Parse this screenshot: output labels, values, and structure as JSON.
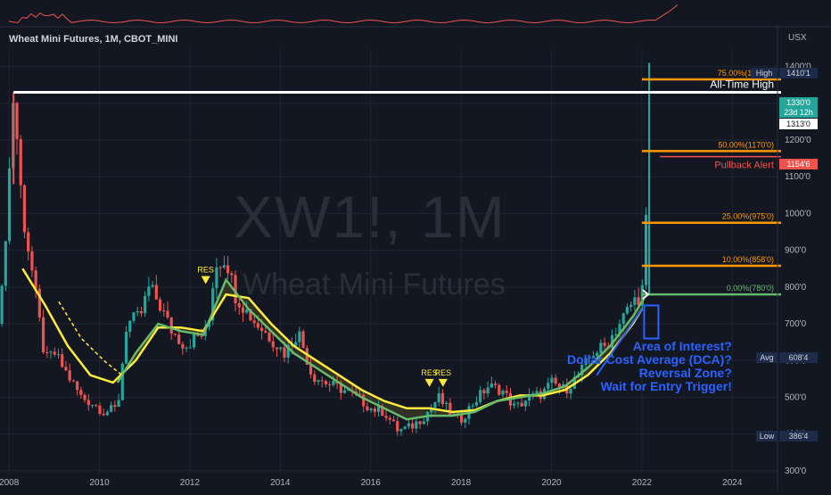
{
  "header": {
    "title": "Wheat Mini Futures, 1M, CBOT_MINI",
    "currency": "USX"
  },
  "watermark": {
    "symbol": "XW1!, 1M",
    "name": "Wheat Mini Futures"
  },
  "price_badges": {
    "high_label": "High",
    "high_value": "1410'1",
    "current_value": "1330'0",
    "countdown": "23d 12h",
    "level_value": "1313'0",
    "alert_value": "1154'6",
    "avg_label": "Avg",
    "avg_value": "608'4",
    "low_label": "Low",
    "low_value": "386'4"
  },
  "annotations": {
    "ath": "All-Time High",
    "pullback": "Pullback Alert",
    "res1": "RES",
    "res2": "RES",
    "res3": "RES",
    "zone_lines": [
      "Area of Interest?",
      "Dollar Cost Average (DCA)?",
      "Reversal Zone?",
      "Wait for Entry Trigger!"
    ]
  },
  "colors": {
    "background": "#131722",
    "up_candle": "#26a69a",
    "down_candle": "#ef5350",
    "fib": "#ff9800",
    "ma_yellow": "#ffeb3b",
    "ma_green": "#66bb6a",
    "zone_blue": "#2962ff",
    "oscillator": "#ef5350"
  },
  "chart_data": {
    "type": "candlestick",
    "x_range": [
      2007.8,
      2025.0
    ],
    "ylim": [
      290,
      1450
    ],
    "x_ticks": [
      {
        "x": 2008,
        "label": "2008"
      },
      {
        "x": 2010,
        "label": "2010"
      },
      {
        "x": 2012,
        "label": "2012"
      },
      {
        "x": 2014,
        "label": "2014"
      },
      {
        "x": 2016,
        "label": "2016"
      },
      {
        "x": 2018,
        "label": "2018"
      },
      {
        "x": 2020,
        "label": "2020"
      },
      {
        "x": 2022,
        "label": "2022"
      },
      {
        "x": 2024,
        "label": "2024"
      }
    ],
    "y_ticks": [
      {
        "y": 300,
        "label": "300'0"
      },
      {
        "y": 400,
        "label": "400'0"
      },
      {
        "y": 500,
        "label": "500'0"
      },
      {
        "y": 600,
        "label": "600'0"
      },
      {
        "y": 700,
        "label": "700'0"
      },
      {
        "y": 800,
        "label": "800'0"
      },
      {
        "y": 900,
        "label": "900'0"
      },
      {
        "y": 1000,
        "label": "1000'0"
      },
      {
        "y": 1100,
        "label": "1100'0"
      },
      {
        "y": 1200,
        "label": "1200'0"
      },
      {
        "y": 1300,
        "label": "1300'0"
      },
      {
        "y": 1400,
        "label": "1400'0"
      }
    ],
    "price_path": [
      [
        2007.8,
        700
      ],
      [
        2008.0,
        1100
      ],
      [
        2008.1,
        1330
      ],
      [
        2008.3,
        1000
      ],
      [
        2008.5,
        850
      ],
      [
        2008.8,
        600
      ],
      [
        2009.0,
        620
      ],
      [
        2009.3,
        560
      ],
      [
        2009.6,
        500
      ],
      [
        2009.9,
        480
      ],
      [
        2010.1,
        460
      ],
      [
        2010.4,
        470
      ],
      [
        2010.6,
        700
      ],
      [
        2010.9,
        720
      ],
      [
        2011.1,
        800
      ],
      [
        2011.3,
        760
      ],
      [
        2011.6,
        680
      ],
      [
        2011.9,
        640
      ],
      [
        2012.1,
        660
      ],
      [
        2012.4,
        680
      ],
      [
        2012.55,
        860
      ],
      [
        2012.8,
        880
      ],
      [
        2013.0,
        780
      ],
      [
        2013.4,
        710
      ],
      [
        2013.8,
        660
      ],
      [
        2014.1,
        620
      ],
      [
        2014.4,
        680
      ],
      [
        2014.7,
        560
      ],
      [
        2015.0,
        540
      ],
      [
        2015.4,
        520
      ],
      [
        2015.7,
        500
      ],
      [
        2016.0,
        470
      ],
      [
        2016.3,
        460
      ],
      [
        2016.6,
        410
      ],
      [
        2016.9,
        420
      ],
      [
        2017.2,
        450
      ],
      [
        2017.5,
        500
      ],
      [
        2017.8,
        450
      ],
      [
        2018.0,
        440
      ],
      [
        2018.3,
        490
      ],
      [
        2018.6,
        530
      ],
      [
        2018.9,
        520
      ],
      [
        2019.2,
        470
      ],
      [
        2019.5,
        500
      ],
      [
        2019.8,
        510
      ],
      [
        2020.0,
        540
      ],
      [
        2020.3,
        520
      ],
      [
        2020.6,
        560
      ],
      [
        2020.9,
        620
      ],
      [
        2021.2,
        640
      ],
      [
        2021.5,
        700
      ],
      [
        2021.8,
        760
      ],
      [
        2022.0,
        780
      ],
      [
        2022.08,
        920
      ],
      [
        2022.12,
        1110
      ],
      [
        2022.16,
        1300
      ]
    ],
    "spikes": [
      {
        "x": 2008.1,
        "high": 1330,
        "low": 1080
      },
      {
        "x": 2022.16,
        "high": 1410.1,
        "low": 780
      }
    ],
    "moving_averages": [
      {
        "color": "yellow",
        "points": [
          [
            2008.3,
            850
          ],
          [
            2008.8,
            750
          ],
          [
            2009.3,
            640
          ],
          [
            2009.8,
            560
          ],
          [
            2010.3,
            540
          ],
          [
            2010.8,
            600
          ],
          [
            2011.3,
            690
          ],
          [
            2011.8,
            690
          ],
          [
            2012.3,
            680
          ],
          [
            2012.8,
            780
          ],
          [
            2013.3,
            770
          ],
          [
            2013.8,
            700
          ],
          [
            2014.3,
            640
          ],
          [
            2014.8,
            600
          ],
          [
            2015.3,
            560
          ],
          [
            2015.8,
            520
          ],
          [
            2016.3,
            490
          ],
          [
            2016.8,
            470
          ],
          [
            2017.3,
            470
          ],
          [
            2017.8,
            460
          ],
          [
            2018.3,
            465
          ],
          [
            2018.8,
            490
          ],
          [
            2019.3,
            505
          ],
          [
            2019.8,
            505
          ],
          [
            2020.3,
            520
          ],
          [
            2020.8,
            560
          ],
          [
            2021.3,
            620
          ],
          [
            2021.8,
            700
          ],
          [
            2022.0,
            740
          ]
        ]
      },
      {
        "color": "green",
        "points": [
          [
            2010.4,
            540
          ],
          [
            2010.8,
            620
          ],
          [
            2011.3,
            700
          ],
          [
            2011.8,
            680
          ],
          [
            2012.3,
            670
          ],
          [
            2012.8,
            820
          ],
          [
            2013.3,
            740
          ],
          [
            2013.8,
            680
          ],
          [
            2014.3,
            620
          ],
          [
            2014.8,
            580
          ],
          [
            2015.3,
            540
          ],
          [
            2015.8,
            500
          ],
          [
            2016.3,
            470
          ],
          [
            2016.8,
            440
          ],
          [
            2017.3,
            450
          ],
          [
            2017.8,
            450
          ],
          [
            2018.3,
            460
          ],
          [
            2018.8,
            490
          ],
          [
            2019.3,
            500
          ],
          [
            2019.8,
            510
          ],
          [
            2020.3,
            530
          ],
          [
            2020.8,
            580
          ],
          [
            2021.3,
            640
          ],
          [
            2021.8,
            720
          ],
          [
            2022.05,
            770
          ]
        ]
      },
      {
        "color": "yellow-dashed",
        "points": [
          [
            2009.1,
            760
          ],
          [
            2009.6,
            660
          ],
          [
            2010.1,
            600
          ],
          [
            2010.5,
            560
          ]
        ]
      }
    ],
    "horizontal_levels": [
      {
        "name": "all-time-high",
        "value": 1330,
        "color": "#ffffff",
        "from": 2008.1,
        "label": "All-Time High"
      },
      {
        "name": "fib-75",
        "value": 1365,
        "color": "#ff9800",
        "from": 2022.0,
        "label": "75.00%(1365'0)"
      },
      {
        "name": "fib-50",
        "value": 1170,
        "color": "#ff9800",
        "from": 2022.0,
        "label": "50.00%(1170'0)"
      },
      {
        "name": "pullback",
        "value": 1154.75,
        "color": "#ef5350",
        "from": 2022.4,
        "label": "Pullback Alert"
      },
      {
        "name": "fib-25",
        "value": 975,
        "color": "#ff9800",
        "from": 2022.0,
        "label": "25.00%(975'0)"
      },
      {
        "name": "fib-10",
        "value": 858,
        "color": "#ff9800",
        "from": 2022.0,
        "label": "10.00%(858'0)"
      },
      {
        "name": "fib-0",
        "value": 780,
        "color": "#66bb6a",
        "from": 2022.0,
        "label": "0.00%(780'0)"
      }
    ]
  }
}
